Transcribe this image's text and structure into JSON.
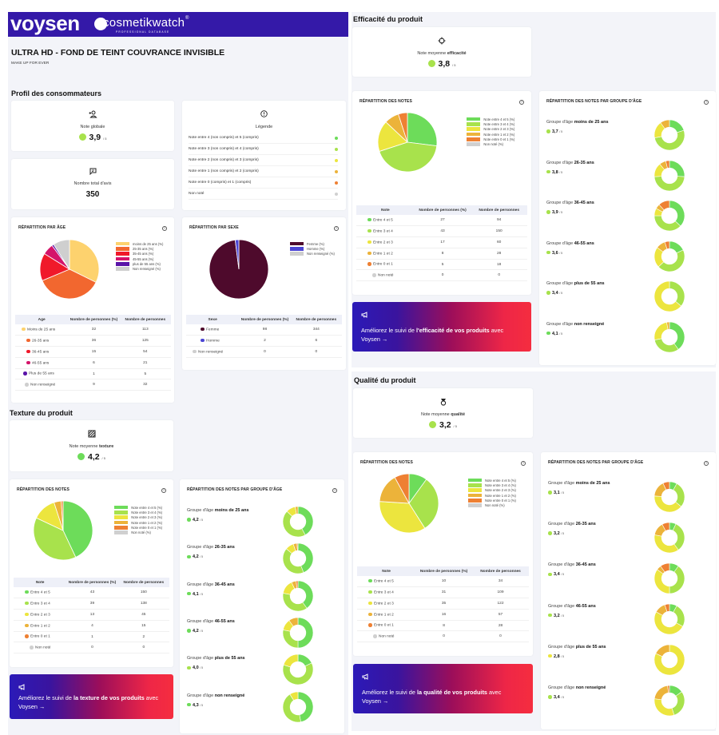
{
  "brand": {
    "name": "voysen",
    "partner": "cosmetikwatch",
    "partner_sub": "PROFESSIONAL DATABASE",
    "registered": "®",
    "header_color": "#3419a8"
  },
  "product": {
    "title": "ULTRA HD - FOND DE TEINT COUVRANCE INVISIBLE",
    "brand": "MAKE UP FOR EVER"
  },
  "colors": {
    "n45": "#6ddc5a",
    "n34": "#a8e24c",
    "n23": "#ece53e",
    "n12": "#ecb33a",
    "n01": "#ee8033",
    "nn": "#d0d0d0",
    "age_u25": "#fdd26e",
    "age_26_35": "#f2672f",
    "age_36_45": "#f0192a",
    "age_46_55": "#d4146a",
    "age_55p": "#5a14a8",
    "age_nr": "#cfcfcf",
    "femme": "#4e0a2c",
    "homme": "#4b45d4",
    "sexe_nr": "#cfcfcf"
  },
  "profil": {
    "section_title": "Profil des consommateurs",
    "note_globale": {
      "icon": "user-star-icon",
      "label": "Note globale",
      "value": "3,9",
      "denominator": "/ 5",
      "color": "#a8e24c"
    },
    "total_avis": {
      "icon": "chat-icon",
      "label": "Nombre total d'avis",
      "value": "350"
    },
    "legende": {
      "icon": "info-icon",
      "title": "Légende",
      "items": [
        {
          "label": "Note entre 4 (non compris) et 5 (compris)",
          "color": "#6ddc5a"
        },
        {
          "label": "Note entre 3 (non compris) et 4 (compris)",
          "color": "#a8e24c"
        },
        {
          "label": "Note entre 2 (non compris) et 3 (compris)",
          "color": "#ece53e"
        },
        {
          "label": "Note entre 1 (non compris) et 2 (compris)",
          "color": "#ecb33a"
        },
        {
          "label": "Note entre 0 (compris) et 1 (compris)",
          "color": "#ee8033"
        },
        {
          "label": "Non noté",
          "color": "#d0d0d0"
        }
      ]
    },
    "age": {
      "title": "RÉPARTITION PAR ÂGE",
      "legend": [
        "moins de 25 ans (%)",
        "25-35 ans (%)",
        "35-45 ans (%)",
        "45-55 ans (%)",
        "plus de 55 ans (%)",
        "Non renseigné (%)"
      ],
      "headers": [
        "Age",
        "Nombre de personnes (%)",
        "Nombre de personnes"
      ],
      "rows": [
        {
          "label": "Moins de 25 ans",
          "pct": "32",
          "count": "113",
          "color": "#fdd26e"
        },
        {
          "label": "26-35 ans",
          "pct": "36",
          "count": "125",
          "color": "#f2672f"
        },
        {
          "label": "36-45 ans",
          "pct": "15",
          "count": "54",
          "color": "#f0192a"
        },
        {
          "label": "46-55 ans",
          "pct": "6",
          "count": "21",
          "color": "#d4146a"
        },
        {
          "label": "Plus de 55 ans",
          "pct": "1",
          "count": "5",
          "color": "#5a14a8"
        },
        {
          "label": "Non renseigné",
          "pct": "9",
          "count": "32",
          "color": "#cfcfcf"
        }
      ]
    },
    "sexe": {
      "title": "RÉPARTITION PAR SEXE",
      "legend": [
        "Femme (%)",
        "Homme (%)",
        "Non renseigné (%)"
      ],
      "headers": [
        "Sexe",
        "Nombre de personnes (%)",
        "Nombre de personnes"
      ],
      "rows": [
        {
          "label": "Femme",
          "pct": "98",
          "count": "344",
          "color": "#4e0a2c"
        },
        {
          "label": "Homme",
          "pct": "2",
          "count": "6",
          "color": "#4b45d4"
        },
        {
          "label": "Non renseigné",
          "pct": "0",
          "count": "0",
          "color": "#cfcfcf"
        }
      ]
    }
  },
  "notes_legend": [
    "Note entre 4 et 5 (%)",
    "Note entre 3 et 4 (%)",
    "Note entre 2 et 3 (%)",
    "Note entre 1 et 2 (%)",
    "Note entre 0 et 1 (%)",
    "Non noté (%)"
  ],
  "notes_headers": [
    "Note",
    "Nombre de personnes (%)",
    "Nombre de personnes"
  ],
  "notes_title": "RÉPARTITION DES NOTES",
  "age_notes_title": "RÉPARTITION DES NOTES PAR GROUPE D'ÂGE",
  "group_prefix": "Groupe d'âge",
  "note_prefix": "Note moyenne",
  "denominator": "/ 5",
  "sections": {
    "texture": {
      "title": "Texture du produit",
      "icon": "texture-icon",
      "keyword": "texture",
      "score": "4,2",
      "score_color": "#6ddc5a",
      "rows": [
        {
          "label": "Entre 4 et 5",
          "pct": "43",
          "count": "150"
        },
        {
          "label": "Entre 3 et 4",
          "pct": "39",
          "count": "138"
        },
        {
          "label": "Entre 2 et 3",
          "pct": "13",
          "count": "45"
        },
        {
          "label": "Entre 1 et 2",
          "pct": "4",
          "count": "15"
        },
        {
          "label": "Entre 0 et 1",
          "pct": "1",
          "count": "2"
        },
        {
          "label": "Non noté",
          "pct": "0",
          "count": "0"
        }
      ],
      "groups": [
        {
          "name": "moins de 25 ans",
          "score": "4,2",
          "color": "#6ddc5a",
          "dist": [
            42,
            45,
            10,
            3,
            0
          ]
        },
        {
          "name": "26-35 ans",
          "score": "4,2",
          "color": "#6ddc5a",
          "dist": [
            44,
            42,
            9,
            4,
            1
          ]
        },
        {
          "name": "36-45 ans",
          "score": "4,1",
          "color": "#6ddc5a",
          "dist": [
            40,
            38,
            15,
            5,
            2
          ]
        },
        {
          "name": "46-55 ans",
          "score": "4,2",
          "color": "#6ddc5a",
          "dist": [
            50,
            28,
            12,
            10,
            0
          ]
        },
        {
          "name": "plus de 55 ans",
          "score": "4,0",
          "color": "#a8e24c",
          "dist": [
            18,
            62,
            20,
            0,
            0
          ]
        },
        {
          "name": "non renseigné",
          "score": "4,3",
          "color": "#6ddc5a",
          "dist": [
            47,
            44,
            9,
            0,
            0
          ]
        }
      ],
      "banner": {
        "pre": "Améliorez le suivi de ",
        "bold": "la texture de vos produits",
        "post": " avec",
        "link": "Voysen →"
      }
    },
    "efficacite": {
      "title": "Efficacité du produit",
      "icon": "target-icon",
      "keyword": "efficacité",
      "score": "3,8",
      "score_color": "#a8e24c",
      "rows": [
        {
          "label": "Entre 4 et 5",
          "pct": "27",
          "count": "94"
        },
        {
          "label": "Entre 3 et 4",
          "pct": "43",
          "count": "150"
        },
        {
          "label": "Entre 2 et 3",
          "pct": "17",
          "count": "60"
        },
        {
          "label": "Entre 1 et 2",
          "pct": "8",
          "count": "28"
        },
        {
          "label": "Entre 0 et 1",
          "pct": "5",
          "count": "18"
        },
        {
          "label": "Non noté",
          "pct": "0",
          "count": "0"
        }
      ],
      "groups": [
        {
          "name": "moins de 25 ans",
          "score": "3,7",
          "color": "#a8e24c",
          "dist": [
            20,
            52,
            18,
            10,
            0
          ]
        },
        {
          "name": "26-35 ans",
          "score": "3,8",
          "color": "#a8e24c",
          "dist": [
            26,
            48,
            15,
            7,
            4
          ]
        },
        {
          "name": "36-45 ans",
          "score": "3,9",
          "color": "#a8e24c",
          "dist": [
            37,
            38,
            8,
            5,
            12
          ]
        },
        {
          "name": "46-55 ans",
          "score": "3,6",
          "color": "#a8e24c",
          "dist": [
            18,
            45,
            22,
            10,
            5
          ]
        },
        {
          "name": "plus de 55 ans",
          "score": "3,4",
          "color": "#a8e24c",
          "dist": [
            0,
            36,
            64,
            0,
            0
          ]
        },
        {
          "name": "non renseigné",
          "score": "4,1",
          "color": "#6ddc5a",
          "dist": [
            40,
            32,
            25,
            3,
            0
          ]
        }
      ],
      "banner": {
        "pre": "Améliorez le suivi de ",
        "bold": "l'efficacité de vos produits",
        "post": " avec",
        "link": "Voysen →"
      }
    },
    "qualite": {
      "title": "Qualité du produit",
      "icon": "medal-icon",
      "keyword": "qualité",
      "score": "3,2",
      "score_color": "#a8e24c",
      "rows": [
        {
          "label": "Entre 4 et 5",
          "pct": "10",
          "count": "34"
        },
        {
          "label": "Entre 3 et 4",
          "pct": "31",
          "count": "109"
        },
        {
          "label": "Entre 2 et 3",
          "pct": "35",
          "count": "122"
        },
        {
          "label": "Entre 1 et 2",
          "pct": "16",
          "count": "57"
        },
        {
          "label": "Entre 0 et 1",
          "pct": "8",
          "count": "28"
        },
        {
          "label": "Non noté",
          "pct": "0",
          "count": "0"
        }
      ],
      "groups": [
        {
          "name": "moins de 25 ans",
          "score": "3,1",
          "color": "#a8e24c",
          "dist": [
            8,
            28,
            40,
            17,
            7
          ]
        },
        {
          "name": "26-35 ans",
          "score": "3,2",
          "color": "#a8e24c",
          "dist": [
            7,
            33,
            38,
            14,
            8
          ]
        },
        {
          "name": "36-45 ans",
          "score": "3,4",
          "color": "#a8e24c",
          "dist": [
            10,
            40,
            35,
            5,
            10
          ]
        },
        {
          "name": "46-55 ans",
          "score": "3,2",
          "color": "#a8e24c",
          "dist": [
            8,
            25,
            50,
            12,
            5
          ]
        },
        {
          "name": "plus de 55 ans",
          "score": "2,8",
          "color": "#ece53e",
          "dist": [
            0,
            0,
            82,
            18,
            0
          ]
        },
        {
          "name": "non renseigné",
          "score": "3,4",
          "color": "#a8e24c",
          "dist": [
            15,
            30,
            32,
            21,
            2
          ]
        }
      ],
      "banner": {
        "pre": "Améliorez le suivi de ",
        "bold": "la qualité de vos produits",
        "post": " avec",
        "link": "Voysen →"
      }
    }
  },
  "chart_data": [
    {
      "type": "pie",
      "title": "RÉPARTITION PAR ÂGE",
      "categories": [
        "moins de 25 ans (%)",
        "25-35 ans (%)",
        "35-45 ans (%)",
        "45-55 ans (%)",
        "plus de 55 ans (%)",
        "Non renseigné (%)"
      ],
      "values": [
        32,
        36,
        15,
        6,
        1,
        9
      ]
    },
    {
      "type": "pie",
      "title": "RÉPARTITION PAR SEXE",
      "categories": [
        "Femme (%)",
        "Homme (%)",
        "Non renseigné (%)"
      ],
      "values": [
        98,
        2,
        0
      ]
    },
    {
      "type": "pie",
      "title": "RÉPARTITION DES NOTES (Texture)",
      "categories": [
        "Note entre 4 et 5 (%)",
        "Note entre 3 et 4 (%)",
        "Note entre 2 et 3 (%)",
        "Note entre 1 et 2 (%)",
        "Note entre 0 et 1 (%)",
        "Non noté (%)"
      ],
      "values": [
        43,
        39,
        13,
        4,
        1,
        0
      ]
    },
    {
      "type": "pie",
      "title": "RÉPARTITION DES NOTES (Efficacité)",
      "categories": [
        "Note entre 4 et 5 (%)",
        "Note entre 3 et 4 (%)",
        "Note entre 2 et 3 (%)",
        "Note entre 1 et 2 (%)",
        "Note entre 0 et 1 (%)",
        "Non noté (%)"
      ],
      "values": [
        27,
        43,
        17,
        8,
        5,
        0
      ]
    },
    {
      "type": "pie",
      "title": "RÉPARTITION DES NOTES (Qualité)",
      "categories": [
        "Note entre 4 et 5 (%)",
        "Note entre 3 et 4 (%)",
        "Note entre 2 et 3 (%)",
        "Note entre 1 et 2 (%)",
        "Note entre 0 et 1 (%)",
        "Non noté (%)"
      ],
      "values": [
        10,
        31,
        35,
        16,
        8,
        0
      ]
    }
  ]
}
